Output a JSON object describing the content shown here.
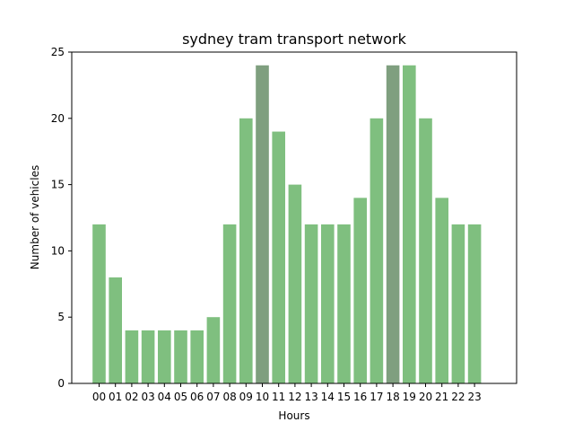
{
  "chart_data": {
    "type": "bar",
    "title": "sydney tram transport network",
    "xlabel": "Hours",
    "ylabel": "Number of vehicles",
    "categories": [
      "00",
      "01",
      "02",
      "03",
      "04",
      "05",
      "06",
      "07",
      "08",
      "09",
      "10",
      "11",
      "12",
      "13",
      "14",
      "15",
      "16",
      "17",
      "18",
      "19",
      "20",
      "21",
      "22",
      "23"
    ],
    "values": [
      12,
      8,
      4,
      4,
      4,
      4,
      4,
      5,
      12,
      20,
      24,
      19,
      15,
      12,
      12,
      12,
      14,
      20,
      24,
      24,
      20,
      14,
      12,
      12
    ],
    "highlighted_categories": [
      "10",
      "18"
    ],
    "ylim": [
      0,
      25
    ],
    "yticks": [
      0,
      5,
      10,
      15,
      20,
      25
    ],
    "grid": false,
    "colors": {
      "bar": "#7fbf7f",
      "bar_highlight": "#7f9f7f",
      "axis": "#000000"
    }
  }
}
